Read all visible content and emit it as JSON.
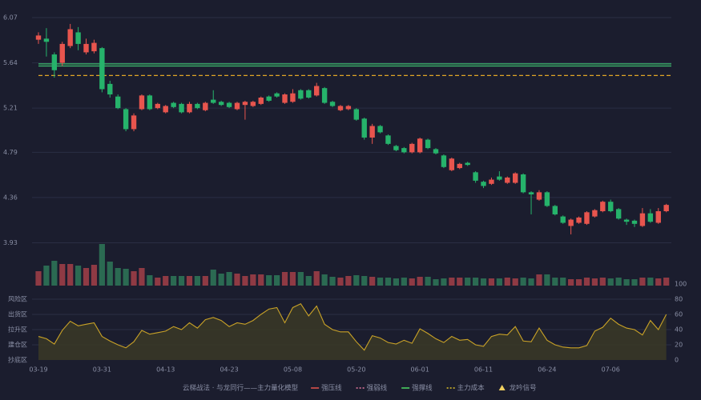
{
  "chart_data": [
    {
      "type": "candlestick",
      "categories": [
        "03-19",
        null,
        null,
        null,
        null,
        null,
        null,
        null,
        "03-31",
        null,
        null,
        null,
        null,
        null,
        null,
        null,
        "04-13",
        null,
        null,
        null,
        null,
        null,
        null,
        null,
        "04-23",
        null,
        null,
        null,
        null,
        null,
        null,
        null,
        "05-08",
        null,
        null,
        null,
        null,
        null,
        null,
        null,
        "05-20",
        null,
        null,
        null,
        null,
        null,
        null,
        null,
        "06-01",
        null,
        null,
        null,
        null,
        null,
        null,
        null,
        "06-11",
        null,
        null,
        null,
        null,
        null,
        null,
        null,
        "06-24",
        null,
        null,
        null,
        null,
        null,
        null,
        null,
        "07-06",
        null,
        null,
        null,
        null,
        null,
        null,
        null
      ],
      "open": [
        5.86,
        5.87,
        5.72,
        5.64,
        5.8,
        5.93,
        5.74,
        5.75,
        5.78,
        5.44,
        5.32,
        5.2,
        5.01,
        5.2,
        5.33,
        5.21,
        5.17,
        5.26,
        5.25,
        5.17,
        5.25,
        5.19,
        5.29,
        5.27,
        5.26,
        5.2,
        5.24,
        5.23,
        5.25,
        5.32,
        5.35,
        5.26,
        5.27,
        5.38,
        5.38,
        5.33,
        5.4,
        5.27,
        5.19,
        5.2,
        5.2,
        5.11,
        4.93,
        5.04,
        4.95,
        4.85,
        4.83,
        4.79,
        4.79,
        4.91,
        4.82,
        4.76,
        4.62,
        4.64,
        4.69,
        4.6,
        4.51,
        4.49,
        4.56,
        4.5,
        4.5,
        4.58,
        4.41,
        4.34,
        4.41,
        4.28,
        4.18,
        4.09,
        4.12,
        4.11,
        4.18,
        4.23,
        4.32,
        4.25,
        4.15,
        4.14,
        4.09,
        4.21,
        4.12,
        4.23
      ],
      "high": [
        5.93,
        5.97,
        5.74,
        5.84,
        6.01,
        5.98,
        5.87,
        5.86,
        5.79,
        5.47,
        5.34,
        5.21,
        5.16,
        5.34,
        5.34,
        5.26,
        5.24,
        5.27,
        5.26,
        5.27,
        5.26,
        5.27,
        5.38,
        5.28,
        5.27,
        5.27,
        5.28,
        5.28,
        5.32,
        5.33,
        5.36,
        5.35,
        5.39,
        5.39,
        5.39,
        5.45,
        5.41,
        5.28,
        5.24,
        5.24,
        5.21,
        5.12,
        5.06,
        5.05,
        4.96,
        4.86,
        4.84,
        4.88,
        4.93,
        4.92,
        4.83,
        4.77,
        4.74,
        4.69,
        4.7,
        4.61,
        4.52,
        4.55,
        4.61,
        4.56,
        4.6,
        4.59,
        4.42,
        4.43,
        4.42,
        4.29,
        4.19,
        4.16,
        4.18,
        4.23,
        4.25,
        4.33,
        4.34,
        4.26,
        4.16,
        4.15,
        4.26,
        4.25,
        4.26,
        4.3
      ],
      "low": [
        5.82,
        5.7,
        5.5,
        5.61,
        5.78,
        5.76,
        5.72,
        5.73,
        5.36,
        5.31,
        5.2,
        4.99,
        4.99,
        5.19,
        5.19,
        5.2,
        5.16,
        5.21,
        5.16,
        5.16,
        5.2,
        5.18,
        5.25,
        5.23,
        5.21,
        5.19,
        5.1,
        5.22,
        5.24,
        5.27,
        5.31,
        5.25,
        5.26,
        5.29,
        5.3,
        5.32,
        5.25,
        5.22,
        5.18,
        5.19,
        5.09,
        4.91,
        4.87,
        4.97,
        4.86,
        4.8,
        4.78,
        4.78,
        4.78,
        4.82,
        4.77,
        4.64,
        4.61,
        4.63,
        4.66,
        4.5,
        4.45,
        4.48,
        4.52,
        4.49,
        4.49,
        4.4,
        4.2,
        4.33,
        4.27,
        4.19,
        4.11,
        4.01,
        4.11,
        4.1,
        4.17,
        4.22,
        4.22,
        4.15,
        4.1,
        4.08,
        4.08,
        4.12,
        4.11,
        4.22
      ],
      "close": [
        5.9,
        5.84,
        5.57,
        5.82,
        5.96,
        5.82,
        5.82,
        5.83,
        5.39,
        5.34,
        5.21,
        5.01,
        5.14,
        5.33,
        5.2,
        5.25,
        5.23,
        5.22,
        5.17,
        5.25,
        5.21,
        5.26,
        5.26,
        5.24,
        5.22,
        5.26,
        5.27,
        5.27,
        5.31,
        5.28,
        5.32,
        5.34,
        5.35,
        5.3,
        5.31,
        5.42,
        5.26,
        5.23,
        5.23,
        5.23,
        5.1,
        4.93,
        5.04,
        4.98,
        4.87,
        4.81,
        4.79,
        4.87,
        4.92,
        4.83,
        4.78,
        4.65,
        4.73,
        4.68,
        4.67,
        4.52,
        4.47,
        4.53,
        4.53,
        4.55,
        4.59,
        4.41,
        4.39,
        4.41,
        4.28,
        4.2,
        4.12,
        4.15,
        4.17,
        4.22,
        4.24,
        4.32,
        4.23,
        4.16,
        4.13,
        4.11,
        4.21,
        4.13,
        4.23,
        4.29
      ],
      "up_color": "#e8554e",
      "down_color": "#26b36b",
      "ylim": [
        3.85,
        6.15
      ],
      "yticks": [
        3.93,
        4.36,
        4.79,
        5.21,
        5.64,
        6.07
      ],
      "grid": true,
      "lines": [
        {
          "value": 5.63,
          "color": "#3fbf6f",
          "dashed": false
        },
        {
          "value": 5.61,
          "color": "#3fbf6f",
          "dashed": false
        },
        {
          "value": 5.52,
          "color": "#e0a526",
          "dashed": true
        }
      ]
    },
    {
      "type": "volume",
      "values": [
        18,
        25,
        31,
        27,
        27,
        25,
        22,
        26,
        52,
        30,
        22,
        21,
        18,
        22,
        13,
        10,
        12,
        12,
        12,
        12,
        12,
        12,
        20,
        15,
        17,
        15,
        12,
        14,
        14,
        13,
        13,
        17,
        17,
        17,
        12,
        18,
        14,
        11,
        10,
        12,
        13,
        12,
        11,
        10,
        10,
        9,
        10,
        9,
        11,
        11,
        8,
        9,
        10,
        10,
        10,
        10,
        9,
        9,
        9,
        10,
        9,
        10,
        9,
        14,
        14,
        10,
        10,
        8,
        8,
        10,
        9,
        10,
        9,
        10,
        8,
        8,
        10,
        10,
        9,
        10
      ],
      "up_color": "#8f3a44",
      "down_color": "#2b6a52",
      "ylim": [
        0,
        60
      ]
    },
    {
      "type": "area",
      "values": [
        31,
        28,
        21,
        39,
        51,
        45,
        47,
        49,
        31,
        25,
        20,
        16,
        24,
        39,
        34,
        36,
        38,
        44,
        40,
        49,
        42,
        53,
        56,
        52,
        44,
        49,
        47,
        52,
        60,
        67,
        69,
        49,
        69,
        74,
        58,
        71,
        47,
        40,
        37,
        37,
        24,
        13,
        32,
        29,
        23,
        21,
        26,
        22,
        41,
        35,
        28,
        23,
        31,
        26,
        27,
        20,
        18,
        31,
        34,
        33,
        44,
        25,
        24,
        42,
        26,
        20,
        17,
        16,
        16,
        19,
        38,
        43,
        55,
        47,
        42,
        40,
        33,
        52,
        40,
        60
      ],
      "color": "#c9a227",
      "fill": "#3a3826",
      "ylim": [
        0,
        100
      ],
      "yticks": [
        0,
        20,
        40,
        60,
        80,
        100
      ],
      "ytick_colors": [
        "#e04848",
        "#e0607a",
        "#5b8ff0",
        "#c850c8",
        "#d9a43a",
        "#3fd27a"
      ],
      "grid": true,
      "zones": [
        {
          "label": "风险区",
          "value": 80,
          "color": "#e5a13a"
        },
        {
          "label": "出货区",
          "value": 60,
          "color": "#d04bd0"
        },
        {
          "label": "拉升区",
          "value": 40,
          "color": "#5b8ff0"
        },
        {
          "label": "建仓区",
          "value": 20,
          "color": "#e05a6a"
        },
        {
          "label": "抄底区",
          "value": 0,
          "color": "#e04848"
        }
      ]
    }
  ],
  "legend": {
    "title": "云梯战法 · 与龙同行——主力量化模型",
    "title_color": "#d9b36a",
    "items": [
      {
        "name": "强压线",
        "color": "#e8554e",
        "style": "line"
      },
      {
        "name": "强弱线",
        "color": "#e87aa0",
        "style": "dash"
      },
      {
        "name": "强撑线",
        "color": "#4cd964",
        "style": "line"
      },
      {
        "name": "主力成本",
        "color": "#e0c326",
        "style": "dash"
      },
      {
        "name": "龙吟信号",
        "color": "#f0d060",
        "style": "triangle"
      }
    ]
  }
}
